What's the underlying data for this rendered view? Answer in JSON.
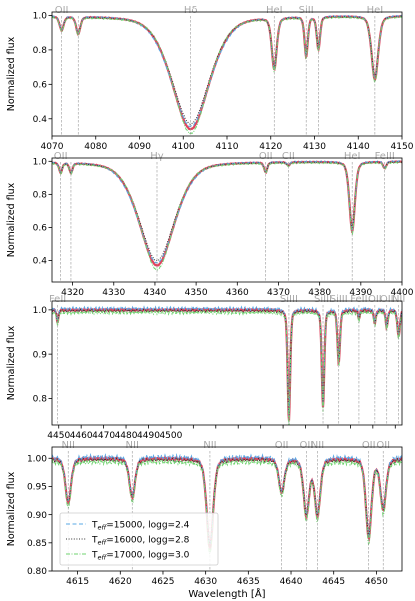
{
  "figure": {
    "xlabel": "Wavelength [Å]",
    "ylabel": "Normalized flux",
    "colors": {
      "observed": "#e0455f",
      "model_15000": "#5aa9e6",
      "model_16000": "#333333",
      "model_17000": "#6fd36f",
      "line_marker": "#999999",
      "label_gray": "#aaaaaa"
    }
  },
  "chart_data": [
    {
      "type": "line",
      "panel": 1,
      "xlim": [
        4070,
        4150
      ],
      "ylim": [
        0.3,
        1.02
      ],
      "xticks": [
        4070,
        4080,
        4090,
        4100,
        4110,
        4120,
        4130,
        4140,
        4150
      ],
      "yticks": [
        0.4,
        0.6,
        0.8,
        1.0
      ],
      "ylabel": "Normalized flux",
      "lines": [
        {
          "label": "OII",
          "wavelength": 4072.2,
          "depth": 0.08,
          "width": 0.5
        },
        {
          "label": "",
          "wavelength": 4076.0,
          "depth": 0.1,
          "width": 0.5
        },
        {
          "label": "Hδ",
          "wavelength": 4101.7,
          "depth": 0.66,
          "width": 4.5
        },
        {
          "label": "HeI",
          "wavelength": 4120.8,
          "depth": 0.3,
          "width": 0.6
        },
        {
          "label": "SiII",
          "wavelength": 4128.1,
          "depth": 0.23,
          "width": 0.4
        },
        {
          "label": "",
          "wavelength": 4130.9,
          "depth": 0.19,
          "width": 0.4
        },
        {
          "label": "HeI",
          "wavelength": 4143.8,
          "depth": 0.37,
          "width": 0.8
        }
      ]
    },
    {
      "type": "line",
      "panel": 2,
      "xlim": [
        4315,
        4400
      ],
      "ylim": [
        0.27,
        1.02
      ],
      "xticks": [
        4320,
        4330,
        4340,
        4350,
        4360,
        4370,
        4380,
        4390,
        4400
      ],
      "yticks": [
        0.4,
        0.6,
        0.8,
        1.0
      ],
      "ylabel": "Normalized flux",
      "lines": [
        {
          "label": "OII",
          "wavelength": 4317.1,
          "depth": 0.06,
          "width": 0.4
        },
        {
          "label": "",
          "wavelength": 4319.6,
          "depth": 0.06,
          "width": 0.4
        },
        {
          "label": "Hγ",
          "wavelength": 4340.5,
          "depth": 0.63,
          "width": 4.5
        },
        {
          "label": "OII",
          "wavelength": 4366.9,
          "depth": 0.06,
          "width": 0.4
        },
        {
          "label": "CII",
          "wavelength": 4372.4,
          "depth": 0.02,
          "width": 0.4
        },
        {
          "label": "HeI",
          "wavelength": 4387.9,
          "depth": 0.42,
          "width": 0.7
        },
        {
          "label": "FeIII",
          "wavelength": 4395.8,
          "depth": 0.04,
          "width": 0.4
        }
      ]
    },
    {
      "type": "line",
      "panel": 3,
      "xlim": [
        4447,
        4603
      ],
      "ylim": [
        0.74,
        1.02
      ],
      "xticks": [
        4450,
        4460,
        4470,
        4480,
        4490,
        4500,
        4510,
        4520,
        4530,
        4540,
        4550,
        4560,
        4570,
        4580,
        4590,
        4600
      ],
      "xtick_labels_shown": [
        4450,
        4460,
        4470,
        4480,
        4490,
        4500
      ],
      "yticks": [
        0.8,
        0.9,
        1.0
      ],
      "ylabel": "Normalized flux",
      "lines": [
        {
          "label": "FeII",
          "wavelength": 4449.5,
          "depth": 0.03,
          "width": 0.4
        },
        {
          "label": "SiIII",
          "wavelength": 4552.6,
          "depth": 0.25,
          "width": 0.6
        },
        {
          "label": "SiIII",
          "wavelength": 4567.8,
          "depth": 0.22,
          "width": 0.6
        },
        {
          "label": "SiIII",
          "wavelength": 4574.8,
          "depth": 0.12,
          "width": 0.6
        },
        {
          "label": "FeII",
          "wavelength": 4583.8,
          "depth": 0.02,
          "width": 0.4
        },
        {
          "label": "OII",
          "wavelength": 4590.9,
          "depth": 0.03,
          "width": 0.5
        },
        {
          "label": "OII",
          "wavelength": 4596.2,
          "depth": 0.04,
          "width": 0.5
        },
        {
          "label": "NII",
          "wavelength": 4601.5,
          "depth": 0.06,
          "width": 0.6
        }
      ]
    },
    {
      "type": "line",
      "panel": 4,
      "xlim": [
        4612,
        4653
      ],
      "ylim": [
        0.8,
        1.02
      ],
      "xticks": [
        4615,
        4620,
        4625,
        4630,
        4635,
        4640,
        4645,
        4650
      ],
      "yticks": [
        0.8,
        0.85,
        0.9,
        0.95,
        1.0
      ],
      "xlabel": "Wavelength [Å]",
      "ylabel": "Normalized flux",
      "legend_placement": "lower-left",
      "series": [
        {
          "name": "Teff=15000, logg=2.4",
          "name_main": "T",
          "name_sub": "eff",
          "name_rest": "=15000, logg=2.4",
          "style": "dashed",
          "color": "#5aa9e6"
        },
        {
          "name": "Teff=16000, logg=2.8",
          "name_main": "T",
          "name_sub": "eff",
          "name_rest": "=16000, logg=2.8",
          "style": "dotted",
          "color": "#333333"
        },
        {
          "name": "Teff=17000, logg=3.0",
          "name_main": "T",
          "name_sub": "eff",
          "name_rest": "=17000, logg=3.0",
          "style": "dashdot",
          "color": "#6fd36f"
        }
      ],
      "lines": [
        {
          "label": "NII",
          "wavelength": 4613.9,
          "depth": 0.08,
          "width": 0.35
        },
        {
          "label": "NII",
          "wavelength": 4621.4,
          "depth": 0.07,
          "width": 0.35
        },
        {
          "label": "NII",
          "wavelength": 4630.5,
          "depth": 0.16,
          "width": 0.4
        },
        {
          "label": "OII",
          "wavelength": 4638.9,
          "depth": 0.06,
          "width": 0.35
        },
        {
          "label": "OII",
          "wavelength": 4641.8,
          "depth": 0.1,
          "width": 0.35
        },
        {
          "label": "NII",
          "wavelength": 4643.1,
          "depth": 0.1,
          "width": 0.35
        },
        {
          "label": "OII",
          "wavelength": 4649.1,
          "depth": 0.14,
          "width": 0.35
        },
        {
          "label": "OII",
          "wavelength": 4650.8,
          "depth": 0.09,
          "width": 0.35
        }
      ]
    }
  ]
}
